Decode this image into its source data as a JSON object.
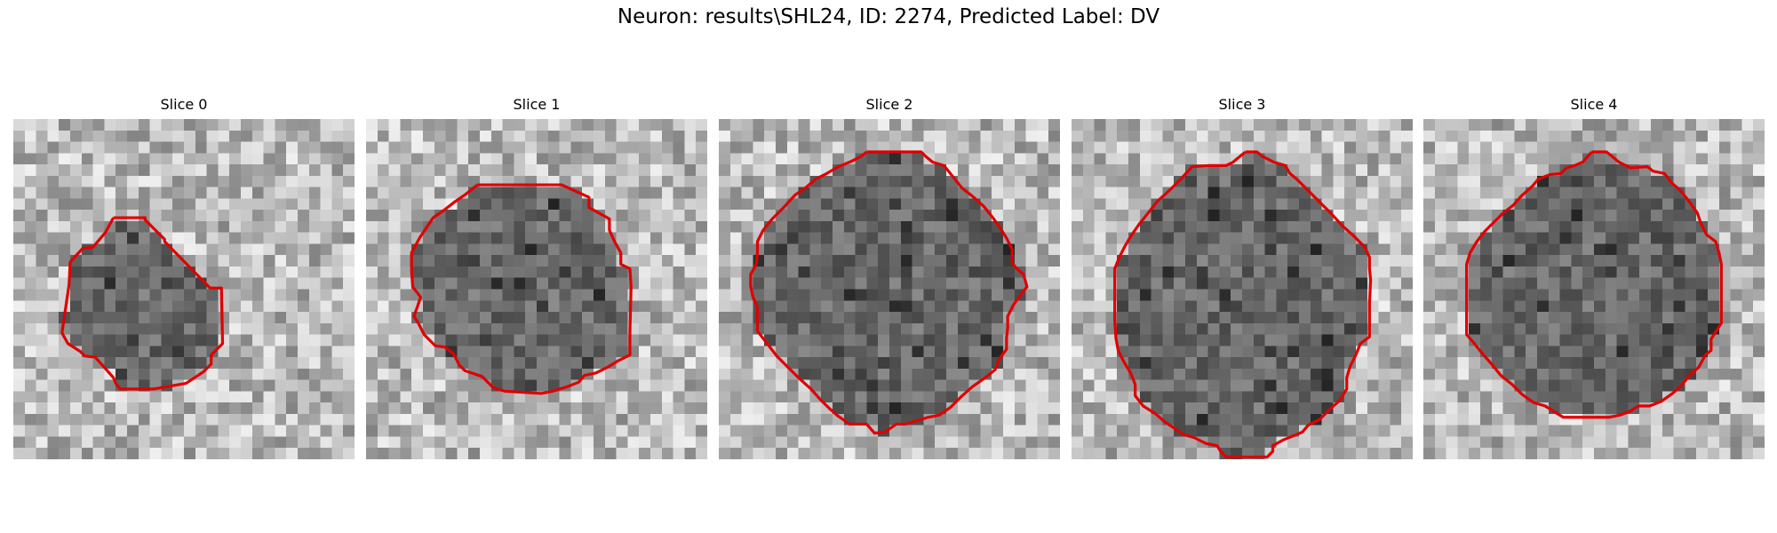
{
  "figure": {
    "title": "Neuron: results\\SHL24, ID: 2274, Predicted Label: DV"
  },
  "grid_cells": 30,
  "contour_color": "#e00000",
  "panels": [
    {
      "title": "Slice 0",
      "contour": [
        [
          8.8,
          8.7
        ],
        [
          11.6,
          8.7
        ],
        [
          11.6,
          8.9
        ],
        [
          13.3,
          10.6
        ],
        [
          13.3,
          10.8
        ],
        [
          17.3,
          14.9
        ],
        [
          18.3,
          14.9
        ],
        [
          18.4,
          19.8
        ],
        [
          17.4,
          20.8
        ],
        [
          17.4,
          21.6
        ],
        [
          16.7,
          22.3
        ],
        [
          15.2,
          23.3
        ],
        [
          12.4,
          23.8
        ],
        [
          9.4,
          23.8
        ],
        [
          9.0,
          23.3
        ],
        [
          8.8,
          22.8
        ],
        [
          7.2,
          21.0
        ],
        [
          6.3,
          20.9
        ],
        [
          5.9,
          20.5
        ],
        [
          4.8,
          19.8
        ],
        [
          4.3,
          18.9
        ],
        [
          4.3,
          18.7
        ],
        [
          4.9,
          14.6
        ],
        [
          5.0,
          12.6
        ],
        [
          6.1,
          11.4
        ],
        [
          7.0,
          11.3
        ],
        [
          8.1,
          10.0
        ],
        [
          8.8,
          8.7
        ]
      ]
    },
    {
      "title": "Slice 1",
      "contour": [
        [
          9.8,
          5.8
        ],
        [
          17.2,
          5.8
        ],
        [
          19.6,
          6.9
        ],
        [
          19.6,
          7.8
        ],
        [
          21.4,
          8.8
        ],
        [
          21.4,
          9.8
        ],
        [
          21.8,
          10.7
        ],
        [
          22.4,
          11.8
        ],
        [
          22.4,
          12.8
        ],
        [
          23.2,
          13.2
        ],
        [
          23.3,
          14.8
        ],
        [
          23.2,
          18.8
        ],
        [
          23.2,
          20.8
        ],
        [
          22.2,
          21.3
        ],
        [
          21.2,
          21.9
        ],
        [
          20.2,
          22.4
        ],
        [
          19.2,
          22.6
        ],
        [
          18.7,
          23.2
        ],
        [
          17.7,
          23.6
        ],
        [
          16.4,
          24.0
        ],
        [
          15.4,
          24.2
        ],
        [
          12.2,
          24.0
        ],
        [
          11.2,
          23.7
        ],
        [
          10.7,
          23.2
        ],
        [
          10.2,
          22.7
        ],
        [
          8.7,
          22.2
        ],
        [
          8.2,
          21.7
        ],
        [
          7.7,
          20.7
        ],
        [
          6.9,
          20.1
        ],
        [
          6.1,
          20.0
        ],
        [
          5.1,
          19.0
        ],
        [
          4.6,
          18.0
        ],
        [
          4.2,
          17.4
        ],
        [
          4.5,
          16.6
        ],
        [
          4.8,
          15.7
        ],
        [
          4.1,
          14.8
        ],
        [
          4.0,
          13.3
        ],
        [
          4.0,
          11.8
        ],
        [
          4.7,
          10.5
        ],
        [
          5.3,
          9.6
        ],
        [
          5.9,
          8.7
        ],
        [
          6.9,
          8.0
        ],
        [
          7.8,
          7.3
        ],
        [
          8.8,
          6.6
        ],
        [
          9.8,
          5.8
        ]
      ]
    },
    {
      "title": "Slice 2",
      "contour": [
        [
          13.0,
          2.9
        ],
        [
          17.8,
          2.9
        ],
        [
          18.2,
          3.3
        ],
        [
          18.8,
          3.8
        ],
        [
          19.8,
          4.1
        ],
        [
          20.6,
          5.1
        ],
        [
          21.4,
          6.1
        ],
        [
          22.3,
          6.8
        ],
        [
          23.3,
          7.7
        ],
        [
          24.1,
          8.7
        ],
        [
          24.8,
          9.7
        ],
        [
          25.3,
          10.5
        ],
        [
          25.8,
          11.5
        ],
        [
          25.8,
          12.7
        ],
        [
          26.2,
          13.2
        ],
        [
          26.8,
          13.7
        ],
        [
          27.1,
          14.8
        ],
        [
          26.6,
          15.4
        ],
        [
          25.9,
          16.4
        ],
        [
          25.4,
          17.4
        ],
        [
          25.4,
          18.4
        ],
        [
          25.3,
          19.3
        ],
        [
          25.3,
          20.3
        ],
        [
          24.7,
          21.1
        ],
        [
          24.3,
          22.1
        ],
        [
          23.3,
          22.9
        ],
        [
          22.3,
          23.6
        ],
        [
          21.4,
          24.4
        ],
        [
          20.4,
          25.4
        ],
        [
          19.4,
          26.1
        ],
        [
          18.4,
          26.3
        ],
        [
          17.4,
          26.6
        ],
        [
          16.4,
          26.9
        ],
        [
          15.6,
          26.9
        ],
        [
          14.6,
          27.6
        ],
        [
          13.7,
          27.7
        ],
        [
          13.0,
          26.9
        ],
        [
          12.5,
          26.9
        ],
        [
          11.5,
          26.9
        ],
        [
          10.5,
          26.2
        ],
        [
          9.7,
          25.5
        ],
        [
          8.9,
          24.7
        ],
        [
          8.1,
          23.8
        ],
        [
          7.1,
          22.9
        ],
        [
          6.1,
          21.9
        ],
        [
          5.1,
          20.9
        ],
        [
          4.1,
          19.6
        ],
        [
          3.4,
          18.7
        ],
        [
          3.4,
          17.5
        ],
        [
          3.4,
          16.6
        ],
        [
          3.0,
          15.7
        ],
        [
          2.8,
          14.7
        ],
        [
          2.8,
          13.7
        ],
        [
          3.3,
          12.8
        ],
        [
          3.4,
          11.8
        ],
        [
          3.4,
          10.8
        ],
        [
          3.9,
          9.8
        ],
        [
          4.7,
          8.8
        ],
        [
          5.7,
          7.8
        ],
        [
          6.7,
          6.7
        ],
        [
          7.7,
          6.0
        ],
        [
          8.5,
          5.3
        ],
        [
          9.5,
          4.8
        ],
        [
          10.5,
          4.2
        ],
        [
          11.5,
          3.8
        ],
        [
          12.5,
          3.3
        ],
        [
          13.0,
          2.9
        ]
      ]
    },
    {
      "title": "Slice 3",
      "contour": [
        [
          15.3,
          2.9
        ],
        [
          16.3,
          2.9
        ],
        [
          16.8,
          3.3
        ],
        [
          17.8,
          3.8
        ],
        [
          18.8,
          4.1
        ],
        [
          19.2,
          4.8
        ],
        [
          19.8,
          5.3
        ],
        [
          20.8,
          6.3
        ],
        [
          21.8,
          7.3
        ],
        [
          22.8,
          8.3
        ],
        [
          23.8,
          9.4
        ],
        [
          24.8,
          10.3
        ],
        [
          25.8,
          11.3
        ],
        [
          26.2,
          12.2
        ],
        [
          26.2,
          13.2
        ],
        [
          26.3,
          14.2
        ],
        [
          26.2,
          16.2
        ],
        [
          26.2,
          19.2
        ],
        [
          25.4,
          19.8
        ],
        [
          25.0,
          20.8
        ],
        [
          24.5,
          21.8
        ],
        [
          24.2,
          22.8
        ],
        [
          24.2,
          23.8
        ],
        [
          23.6,
          24.8
        ],
        [
          22.8,
          25.5
        ],
        [
          21.8,
          26.5
        ],
        [
          20.8,
          27.0
        ],
        [
          20.3,
          27.6
        ],
        [
          19.6,
          27.9
        ],
        [
          18.6,
          28.3
        ],
        [
          17.7,
          28.8
        ],
        [
          17.7,
          29.3
        ],
        [
          17.2,
          29.8
        ],
        [
          14.8,
          29.8
        ],
        [
          13.6,
          29.8
        ],
        [
          13.1,
          29.3
        ],
        [
          12.8,
          28.8
        ],
        [
          11.8,
          28.6
        ],
        [
          10.8,
          28.1
        ],
        [
          9.8,
          27.8
        ],
        [
          9.1,
          27.3
        ],
        [
          8.2,
          26.7
        ],
        [
          7.4,
          26.0
        ],
        [
          6.3,
          25.3
        ],
        [
          5.6,
          24.4
        ],
        [
          5.6,
          23.4
        ],
        [
          5.2,
          22.4
        ],
        [
          4.6,
          21.4
        ],
        [
          4.1,
          20.4
        ],
        [
          3.9,
          19.3
        ],
        [
          3.8,
          17.7
        ],
        [
          3.8,
          16.2
        ],
        [
          3.8,
          14.8
        ],
        [
          3.8,
          13.2
        ],
        [
          4.2,
          12.2
        ],
        [
          4.7,
          11.2
        ],
        [
          5.3,
          10.2
        ],
        [
          6.0,
          9.2
        ],
        [
          6.8,
          8.2
        ],
        [
          7.6,
          7.2
        ],
        [
          8.6,
          6.3
        ],
        [
          9.6,
          5.3
        ],
        [
          10.6,
          4.2
        ],
        [
          12.1,
          4.1
        ],
        [
          13.6,
          4.1
        ],
        [
          14.2,
          3.8
        ],
        [
          14.8,
          3.3
        ],
        [
          15.3,
          2.9
        ]
      ]
    },
    {
      "title": "Slice 4",
      "contour": [
        [
          14.8,
          2.9
        ],
        [
          16.1,
          2.9
        ],
        [
          16.6,
          3.3
        ],
        [
          17.2,
          3.8
        ],
        [
          18.2,
          4.3
        ],
        [
          19.7,
          4.2
        ],
        [
          20.2,
          4.6
        ],
        [
          21.2,
          4.8
        ],
        [
          21.8,
          5.6
        ],
        [
          22.6,
          6.3
        ],
        [
          23.4,
          7.3
        ],
        [
          24.1,
          8.3
        ],
        [
          24.4,
          9.2
        ],
        [
          24.9,
          10.2
        ],
        [
          25.7,
          10.8
        ],
        [
          26.0,
          11.8
        ],
        [
          26.2,
          12.8
        ],
        [
          26.2,
          14.8
        ],
        [
          26.2,
          16.8
        ],
        [
          26.2,
          18.0
        ],
        [
          25.3,
          19.4
        ],
        [
          25.3,
          20.4
        ],
        [
          24.8,
          20.8
        ],
        [
          24.2,
          21.9
        ],
        [
          23.4,
          22.6
        ],
        [
          22.7,
          23.5
        ],
        [
          21.9,
          24.2
        ],
        [
          20.9,
          24.9
        ],
        [
          19.9,
          25.3
        ],
        [
          18.9,
          25.3
        ],
        [
          18.1,
          25.8
        ],
        [
          17.3,
          26.1
        ],
        [
          16.3,
          26.3
        ],
        [
          14.3,
          26.3
        ],
        [
          13.3,
          26.3
        ],
        [
          12.3,
          26.3
        ],
        [
          11.5,
          25.8
        ],
        [
          10.7,
          25.3
        ],
        [
          9.7,
          25.0
        ],
        [
          8.7,
          24.3
        ],
        [
          7.8,
          23.4
        ],
        [
          6.8,
          22.6
        ],
        [
          6.0,
          21.6
        ],
        [
          5.2,
          20.7
        ],
        [
          4.4,
          19.7
        ],
        [
          3.8,
          19.0
        ],
        [
          3.8,
          17.8
        ],
        [
          3.8,
          15.8
        ],
        [
          3.8,
          14.3
        ],
        [
          3.8,
          12.8
        ],
        [
          4.1,
          11.8
        ],
        [
          4.7,
          10.8
        ],
        [
          5.4,
          9.9
        ],
        [
          6.2,
          9.1
        ],
        [
          7.0,
          8.3
        ],
        [
          7.9,
          7.6
        ],
        [
          8.6,
          6.8
        ],
        [
          9.6,
          5.9
        ],
        [
          10.1,
          5.3
        ],
        [
          11.1,
          4.9
        ],
        [
          12.1,
          4.8
        ],
        [
          12.6,
          4.3
        ],
        [
          13.3,
          4.1
        ],
        [
          14.0,
          3.8
        ],
        [
          14.8,
          2.9
        ]
      ]
    }
  ]
}
